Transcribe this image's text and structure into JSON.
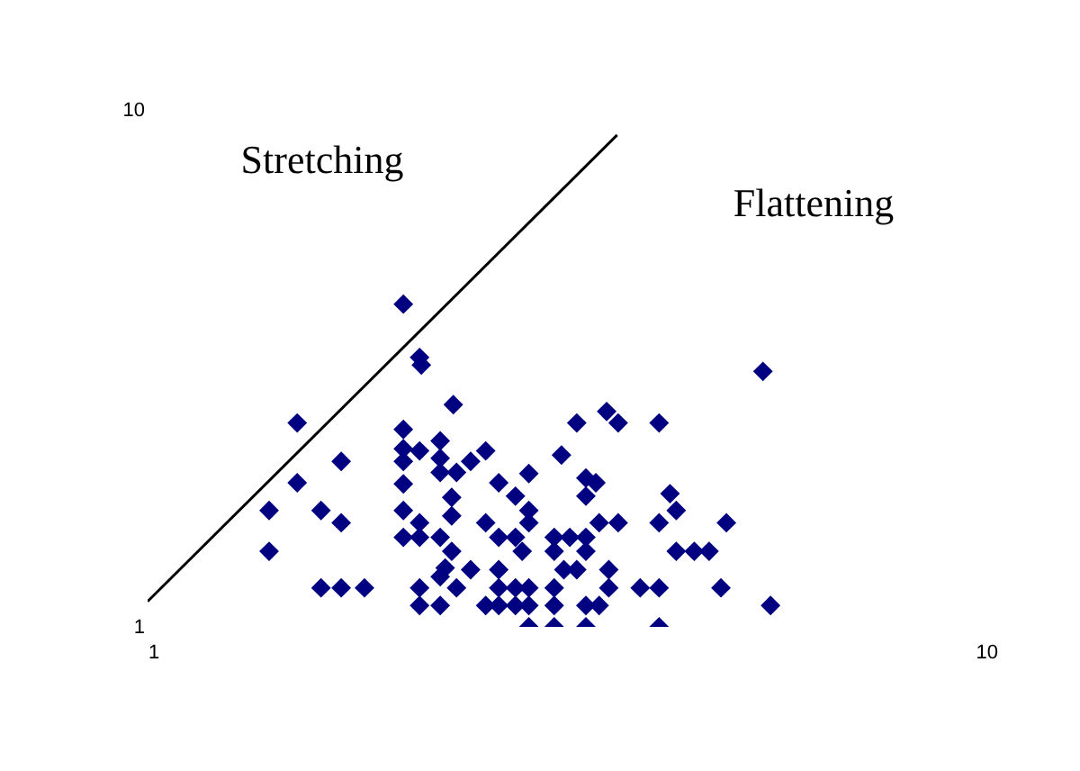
{
  "chart_data": {
    "type": "scatter",
    "log": "xy",
    "xlim": [
      1,
      10
    ],
    "ylim": [
      1,
      10
    ],
    "xticks": [
      1,
      10
    ],
    "yticks": [
      1,
      10
    ],
    "grid": false,
    "legend": false,
    "marker": "diamond",
    "annotations": [
      "Stretching",
      "Flattening"
    ],
    "series": [
      {
        "type": "scatter",
        "color": "#000080",
        "x": [
          2.0,
          2.09,
          2.1,
          2.29,
          1.5,
          2.0,
          3.2,
          3.47,
          3.58,
          4.0,
          5.3,
          1.69,
          2.0,
          2.0,
          2.09,
          2.21,
          2.21,
          2.21,
          2.31,
          2.4,
          2.5,
          3.07,
          2.81,
          3.28,
          3.37,
          3.28,
          1.5,
          1.39,
          1.6,
          1.69,
          2.0,
          2.0,
          2.0,
          2.09,
          2.09,
          2.21,
          2.28,
          2.28,
          2.28,
          2.24,
          2.21,
          2.31,
          2.4,
          2.09,
          2.09,
          2.21,
          2.59,
          2.71,
          2.81,
          2.5,
          2.59,
          2.71,
          2.81,
          2.76,
          3.01,
          3.14,
          3.28,
          3.4,
          3.58,
          3.28,
          3.01,
          4.0,
          4.12,
          4.19,
          4.8,
          4.19,
          4.4,
          4.58,
          1.39,
          1.6,
          1.69,
          1.8,
          2.59,
          2.59,
          2.71,
          2.81,
          2.5,
          2.59,
          2.71,
          2.81,
          2.81,
          3.01,
          3.01,
          3.01,
          3.09,
          3.2,
          3.28,
          3.4,
          3.28,
          3.49,
          3.49,
          3.8,
          4.0,
          4.0,
          4.73,
          5.41
        ],
        "values": [
          4.21,
          3.32,
          3.21,
          2.69,
          2.48,
          2.41,
          2.48,
          2.61,
          2.48,
          2.48,
          3.12,
          2.09,
          2.21,
          2.09,
          2.19,
          2.29,
          2.12,
          1.99,
          1.99,
          2.09,
          2.19,
          2.15,
          1.98,
          1.94,
          1.9,
          1.79,
          1.9,
          1.68,
          1.68,
          1.59,
          1.89,
          1.68,
          1.49,
          1.59,
          1.49,
          1.49,
          1.78,
          1.64,
          1.4,
          1.3,
          1.25,
          1.19,
          1.29,
          1.19,
          1.1,
          1.1,
          1.9,
          1.79,
          1.68,
          1.59,
          1.49,
          1.49,
          1.59,
          1.4,
          1.49,
          1.49,
          1.49,
          1.59,
          1.59,
          1.4,
          1.4,
          1.59,
          1.81,
          1.68,
          1.59,
          1.4,
          1.4,
          1.4,
          1.4,
          1.19,
          1.19,
          1.19,
          1.29,
          1.19,
          1.19,
          1.19,
          1.1,
          1.1,
          1.1,
          1.1,
          1.0,
          1.19,
          1.1,
          1.0,
          1.29,
          1.29,
          1.1,
          1.1,
          1.0,
          1.29,
          1.19,
          1.19,
          1.19,
          1.0,
          1.19,
          1.1
        ]
      },
      {
        "type": "line",
        "color": "#000000",
        "line_style": "solid",
        "marker": "none",
        "x": [
          1,
          3.57
        ],
        "values": [
          1.12,
          8.94
        ]
      }
    ]
  }
}
